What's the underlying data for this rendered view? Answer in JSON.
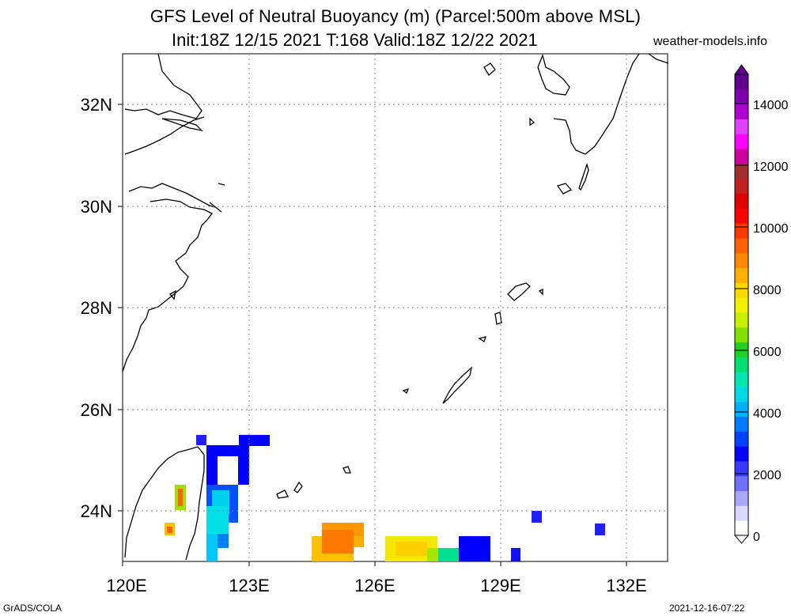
{
  "header": {
    "title_line1": "GFS Level of Neutral Buoyancy (m) (Parcel:500m above MSL)",
    "title_line2": "Init:18Z 12/15 2021 T:168 Valid:18Z 12/22 2021",
    "site": "weather-models.info"
  },
  "footer": {
    "left": "GrADS/COLA",
    "right": "2021-12-16-07:22"
  },
  "map": {
    "lon_labels": [
      "120E",
      "123E",
      "126E",
      "129E",
      "132E"
    ],
    "lat_labels": [
      "32N",
      "30N",
      "28N",
      "26N",
      "24N"
    ],
    "lon_range": [
      120,
      133
    ],
    "lat_range": [
      23,
      33
    ],
    "grid": "dotted"
  },
  "colorbar": {
    "labels": [
      "14000",
      "12000",
      "10000",
      "8000",
      "6000",
      "4000",
      "2000",
      "0"
    ],
    "colors": [
      "#ffffff",
      "#d8d8ff",
      "#a8a8ff",
      "#7070ff",
      "#3838ff",
      "#0000ff",
      "#0040ff",
      "#0078ff",
      "#00b0ff",
      "#00d8e8",
      "#00e8b0",
      "#00e070",
      "#20d020",
      "#80e000",
      "#c8f000",
      "#f0f000",
      "#ffd800",
      "#ffb000",
      "#ff8800",
      "#ff6000",
      "#ff3800",
      "#ff0000",
      "#e00000",
      "#c02020",
      "#a03030",
      "#d000a0",
      "#ff00ff",
      "#e040ff",
      "#b000d0",
      "#8000b0",
      "#600090"
    ]
  }
}
